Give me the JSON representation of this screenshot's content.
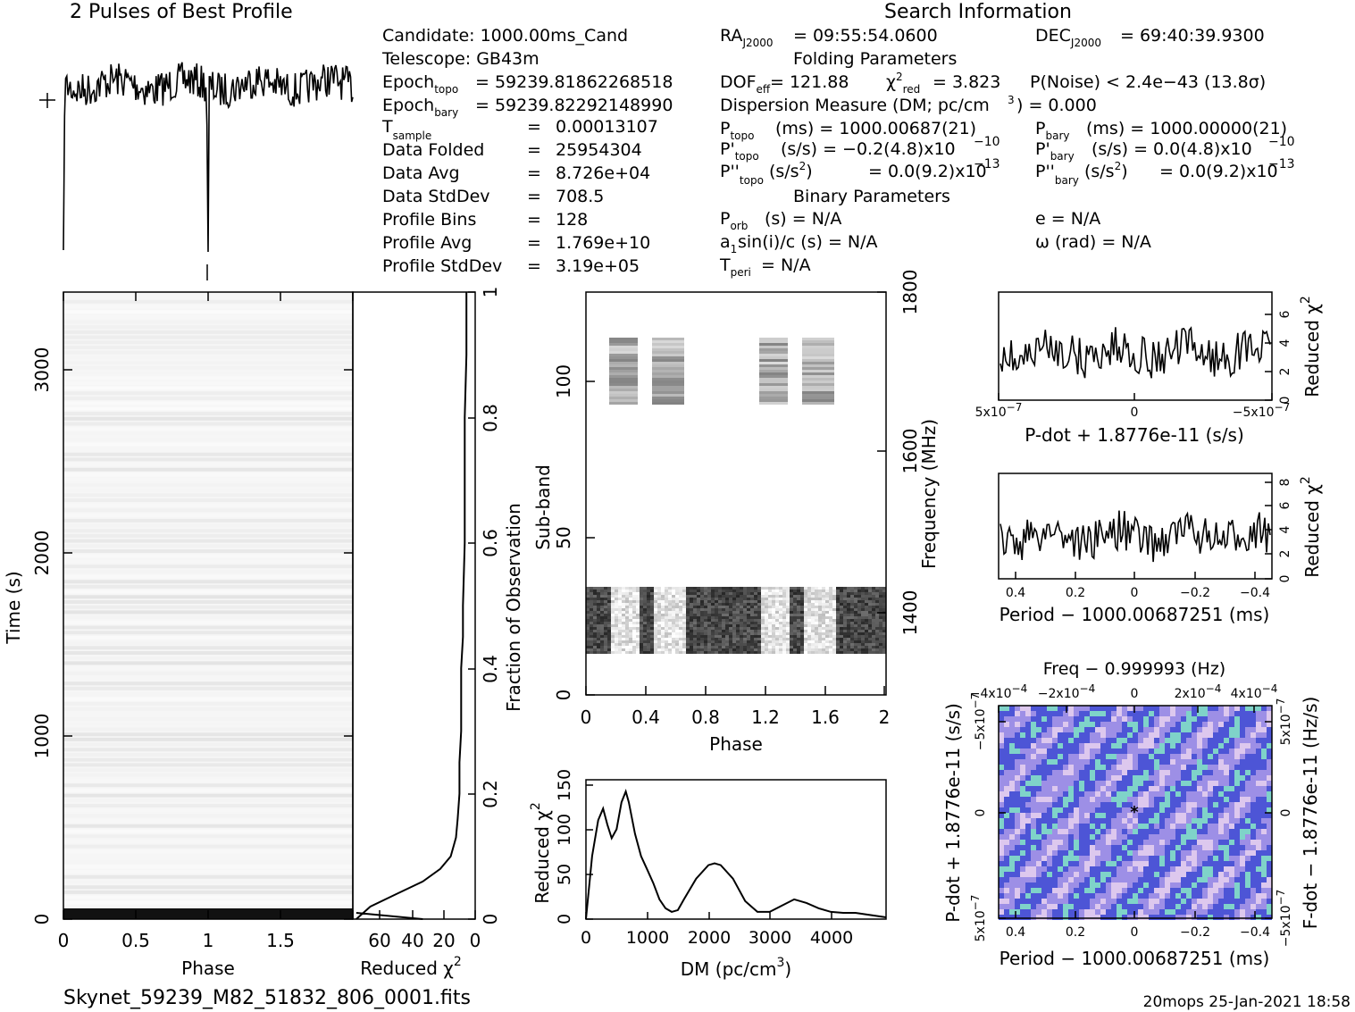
{
  "page": {
    "footer_file": "Skynet_59239_M82_51832_806_0001.fits",
    "footer_stamp": "20mops  25-Jan-2021 18:58"
  },
  "info": {
    "profile_title": "2 Pulses of Best Profile",
    "search_title": "Search Information",
    "folding_title": "Folding Parameters",
    "binary_title": "Binary Parameters",
    "candidate": "Candidate:   1000.00ms_Cand",
    "telescope": "Telescope:   GB43m",
    "epoch_topo": "= 59239.81862268518",
    "epoch_bary": "= 59239.82292148990",
    "table": [
      {
        "label": "Data Folded",
        "value": "25954304"
      },
      {
        "label": "Data Avg",
        "value": "8.726e+04"
      },
      {
        "label": "Data StdDev",
        "value": "708.5"
      },
      {
        "label": "Profile Bins",
        "value": "128"
      },
      {
        "label": "Profile Avg",
        "value": "1.769e+10"
      },
      {
        "label": "Profile StdDev",
        "value": "3.19e+05"
      }
    ],
    "t_sample_value": "0.00013107",
    "ra": "= 09:55:54.0600",
    "dec": "= 69:40:39.9300",
    "dof_eff": "= 121.88",
    "chi2_red": "= 3.823",
    "p_noise": "P(Noise) < 2.4e−43   (13.8σ)",
    "dm_line": "Dispersion Measure (DM; pc/cm",
    "dm_value": ") = 0.000",
    "p_topo": "(ms) =   1000.00687(21)",
    "p_bary": "(ms) =   1000.00000(21)",
    "pd_topo": "(s/s) = −0.2(4.8)x10",
    "pd_topo_exp": "−10",
    "pd_bary": "(s/s) = 0.0(4.8)x10",
    "pd_bary_exp": "−10",
    "pdd_topo": "= 0.0(9.2)x10",
    "pdd_topo_exp": "−13",
    "pdd_bary": "= 0.0(9.2)x10",
    "pdd_bary_exp": "−13",
    "p_orb": "(s) = N/A",
    "ecc": "e = N/A",
    "a1": "sin(i)/c (s) = N/A",
    "omega": "ω (rad) = N/A",
    "t_peri": "= N/A"
  },
  "chart_data": [
    {
      "id": "time-phase",
      "type": "heatmap",
      "xlabel": "Phase",
      "ylabel": "Time (s)",
      "xticks": [
        "0",
        "0.5",
        "1",
        "1.5"
      ],
      "yticks": [
        "0",
        "1000",
        "2000",
        "3000"
      ],
      "xlim": [
        0,
        2
      ],
      "ylim": [
        0,
        3400
      ]
    },
    {
      "id": "time-chi2",
      "type": "line",
      "xlabel": "Reduced χ",
      "ylabel": "Fraction of Observation",
      "xticks": [
        "60",
        "40",
        "20",
        "0"
      ],
      "yticks": [
        "0",
        "0.2",
        "0.4",
        "0.6",
        "0.8",
        "1"
      ],
      "xlim": [
        70,
        0
      ],
      "ylim": [
        0,
        1
      ],
      "x": [
        68,
        60,
        45,
        30,
        20,
        14,
        11,
        10,
        9,
        9,
        8,
        8,
        8,
        7,
        7,
        6,
        6,
        6,
        5,
        5,
        5
      ],
      "y": [
        0.0,
        0.02,
        0.04,
        0.06,
        0.08,
        0.1,
        0.13,
        0.16,
        0.2,
        0.25,
        0.3,
        0.35,
        0.4,
        0.45,
        0.5,
        0.6,
        0.7,
        0.8,
        0.9,
        0.96,
        1.0
      ]
    },
    {
      "id": "subband-phase",
      "type": "heatmap",
      "xlabel": "Phase",
      "ylabel": "Sub-band",
      "y2label": "Frequency (MHz)",
      "xticks": [
        "0",
        "0.4",
        "0.8",
        "1.2",
        "1.6",
        "2"
      ],
      "yticks": [
        "0",
        "50",
        "100"
      ],
      "y2ticks": [
        "1400",
        "1600",
        "1800"
      ],
      "xlim": [
        0,
        2
      ],
      "ylim": [
        0,
        128
      ]
    },
    {
      "id": "dm-chi2",
      "type": "line",
      "xlabel": "DM (pc/cm",
      "ylabel": "Reduced χ",
      "xticks": [
        "0",
        "1000",
        "2000",
        "3000",
        "4000"
      ],
      "yticks": [
        "0",
        "50",
        "100",
        "150"
      ],
      "xlim": [
        0,
        4900
      ],
      "ylim": [
        0,
        155
      ],
      "x": [
        0,
        100,
        200,
        280,
        350,
        420,
        500,
        580,
        650,
        700,
        800,
        900,
        1000,
        1100,
        1200,
        1300,
        1400,
        1500,
        1600,
        1800,
        2000,
        2100,
        2200,
        2400,
        2600,
        2800,
        3000,
        3200,
        3400,
        3600,
        3800,
        4000,
        4200,
        4400,
        4600,
        4900
      ],
      "y": [
        0,
        70,
        110,
        123,
        105,
        90,
        100,
        130,
        142,
        130,
        95,
        70,
        55,
        40,
        22,
        12,
        8,
        10,
        22,
        45,
        60,
        62,
        60,
        45,
        20,
        8,
        8,
        15,
        22,
        18,
        12,
        8,
        7,
        7,
        5,
        2
      ]
    },
    {
      "id": "pdot-chi2",
      "type": "line",
      "xlabel": "P-dot + 1.8776e-11 (s/s)",
      "ylabel": "Reduced χ",
      "xticks": [
        "5x10",
        "0",
        "−5x10"
      ],
      "yticks": [
        "0",
        "2",
        "4",
        "6"
      ],
      "ylim": [
        0,
        7.5
      ]
    },
    {
      "id": "period-chi2",
      "type": "line",
      "xlabel": "Period − 1000.00687251 (ms)",
      "ylabel": "Reduced χ",
      "xticks": [
        "0.4",
        "0.2",
        "0",
        "−0.2",
        "−0.4"
      ],
      "yticks": [
        "0",
        "2",
        "4",
        "6",
        "8"
      ],
      "ylim": [
        0,
        8.5
      ]
    },
    {
      "id": "period-pdot",
      "type": "heatmap",
      "title": "Freq − 0.999993 (Hz)",
      "xlabel": "Period − 1000.00687251 (ms)",
      "ylabel": "P-dot + 1.8776e-11 (s/s)",
      "y2label": "F-dot − 1.8776e-11 (Hz/s)",
      "xticks": [
        "0.4",
        "0.2",
        "0",
        "−0.2",
        "−0.4"
      ],
      "x2ticks": [
        "−4x10",
        "−2x10",
        "0",
        "2x10",
        "4x10"
      ],
      "yticks": [
        "5x10",
        "0",
        "−5x10"
      ],
      "y2ticks": [
        "−5x10",
        "0",
        "5x10"
      ]
    }
  ],
  "colors": {
    "ink": "#000000",
    "pp_low": "#4d55d6",
    "pp_mid": "#9d8fe6",
    "pp_high": "#ddc8ee"
  }
}
